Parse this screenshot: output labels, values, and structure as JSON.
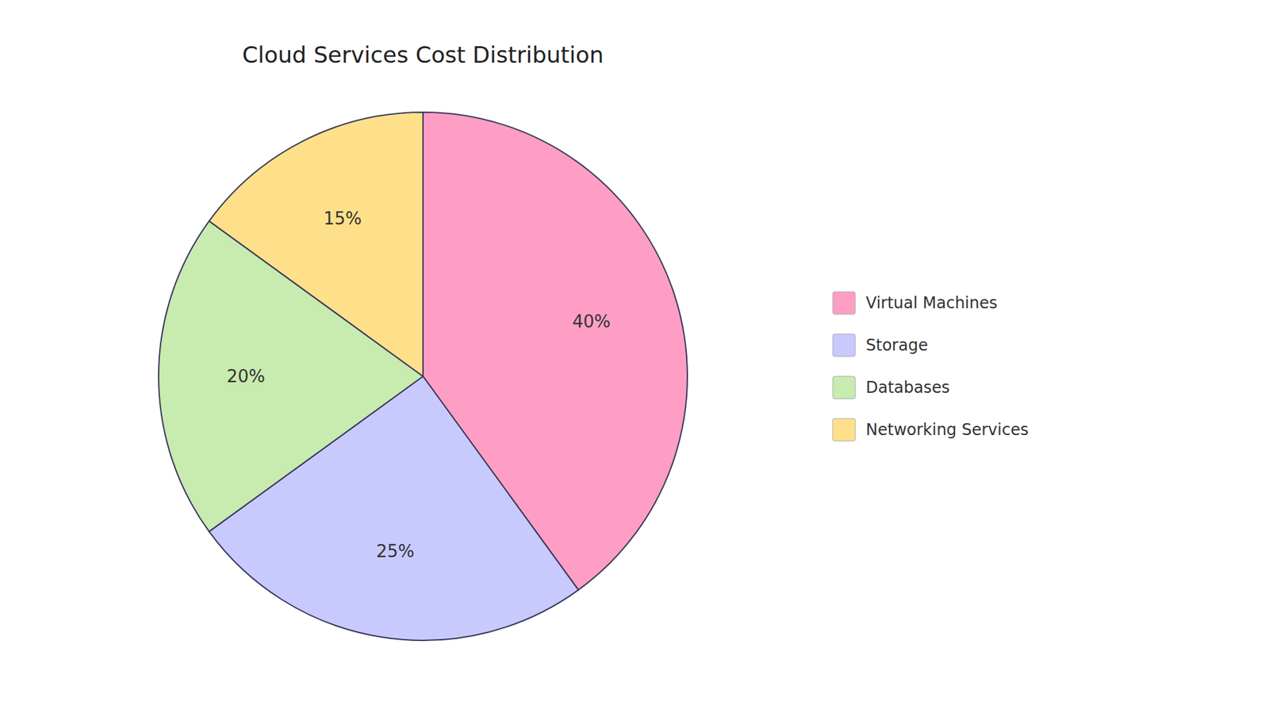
{
  "chart_data": {
    "type": "pie",
    "title": "Cloud Services Cost Distribution",
    "categories": [
      "Virtual Machines",
      "Storage",
      "Databases",
      "Networking Services"
    ],
    "values": [
      40,
      25,
      20,
      15
    ],
    "value_labels": [
      "40%",
      "25%",
      "20%",
      "15%"
    ],
    "colors": [
      "#FF9EC4",
      "#C8CAFE",
      "#C8EBB0",
      "#FFE08A"
    ],
    "data_labels": true,
    "legend": "right"
  }
}
